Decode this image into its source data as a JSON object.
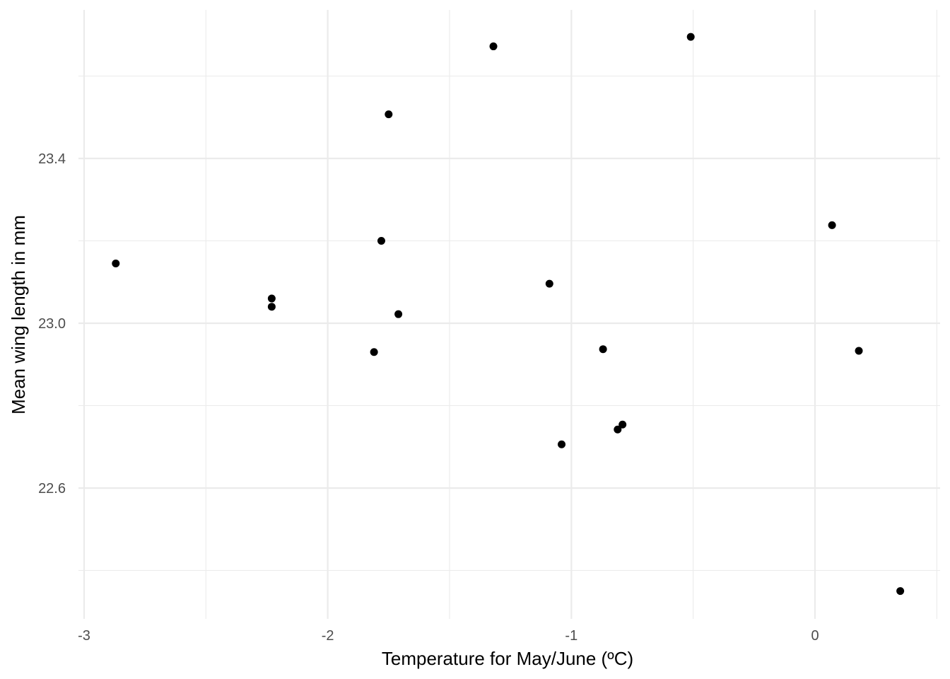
{
  "chart_data": {
    "type": "scatter",
    "title": "",
    "xlabel": "Temperature for May/June (ºC)",
    "ylabel": "Mean wing length in mm",
    "xlim": [
      -3.0,
      0.5
    ],
    "ylim": [
      22.3,
      23.75
    ],
    "x_ticks": [
      -3,
      -2,
      -1,
      0
    ],
    "x_tick_labels": [
      "-3",
      "-2",
      "-1",
      "0"
    ],
    "x_minor_ticks": [
      -2.5,
      -1.5,
      -0.5,
      0.5
    ],
    "y_ticks": [
      22.6,
      23.0,
      23.4
    ],
    "y_tick_labels": [
      "22.6",
      "23.0",
      "23.4"
    ],
    "y_minor_ticks": [
      22.4,
      22.8,
      23.2,
      23.6
    ],
    "grid": true,
    "legend": "none",
    "colors": {
      "point": "#000000",
      "grid": "#ebebeb",
      "background": "#ffffff"
    },
    "points": [
      {
        "x": -2.87,
        "y": 23.145
      },
      {
        "x": -2.23,
        "y": 23.06
      },
      {
        "x": -2.23,
        "y": 23.04
      },
      {
        "x": -1.81,
        "y": 22.93
      },
      {
        "x": -1.78,
        "y": 23.2
      },
      {
        "x": -1.75,
        "y": 23.507
      },
      {
        "x": -1.71,
        "y": 23.022
      },
      {
        "x": -1.32,
        "y": 23.672
      },
      {
        "x": -1.09,
        "y": 23.096
      },
      {
        "x": -1.04,
        "y": 22.706
      },
      {
        "x": -0.87,
        "y": 22.937
      },
      {
        "x": -0.81,
        "y": 22.742
      },
      {
        "x": -0.79,
        "y": 22.754
      },
      {
        "x": -0.51,
        "y": 23.695
      },
      {
        "x": 0.07,
        "y": 23.238
      },
      {
        "x": 0.18,
        "y": 22.933
      },
      {
        "x": 0.35,
        "y": 22.35
      }
    ]
  }
}
